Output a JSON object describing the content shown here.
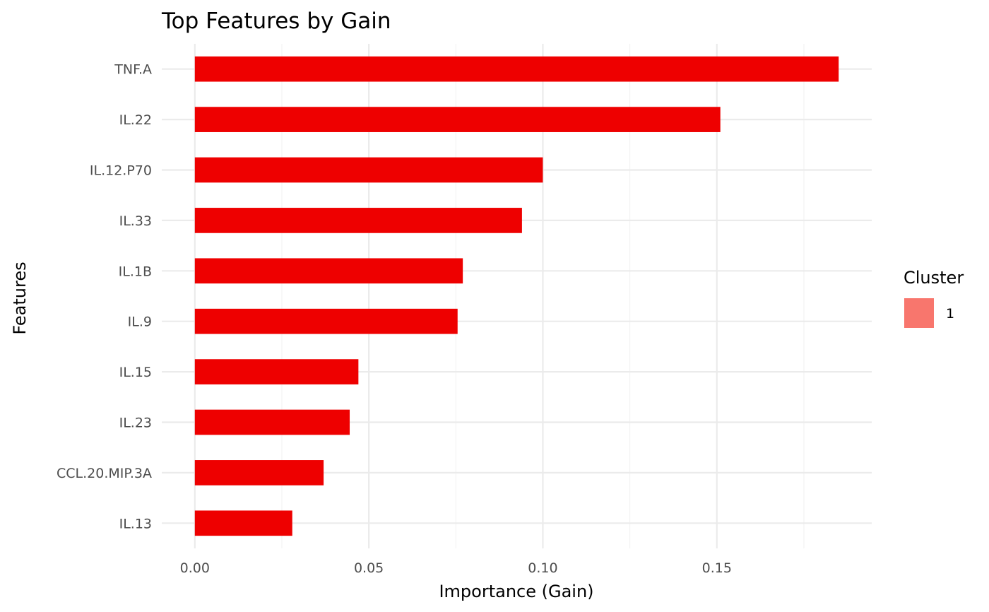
{
  "chart_data": {
    "type": "bar",
    "orientation": "horizontal",
    "title": "Top Features by Gain",
    "xlabel": "Importance (Gain)",
    "ylabel": "Features",
    "categories": [
      "TNF.A",
      "IL.22",
      "IL.12.P70",
      "IL.33",
      "IL.1B",
      "IL.9",
      "IL.15",
      "IL.23",
      "CCL.20.MIP.3A",
      "IL.13"
    ],
    "series": [
      {
        "name": "1",
        "values": [
          0.185,
          0.151,
          0.1,
          0.094,
          0.077,
          0.0755,
          0.047,
          0.0445,
          0.037,
          0.028
        ]
      }
    ],
    "xlim": [
      -0.0095,
      0.1945
    ],
    "xticks": [
      0.0,
      0.05,
      0.1,
      0.15
    ],
    "xtick_labels": [
      "0.00",
      "0.05",
      "0.10",
      "0.15"
    ],
    "grid": true,
    "legend": {
      "title": "Cluster",
      "position": "right",
      "entries": [
        {
          "label": "1",
          "color": "#f8766d"
        }
      ]
    },
    "bar_color": "#ee0000"
  }
}
